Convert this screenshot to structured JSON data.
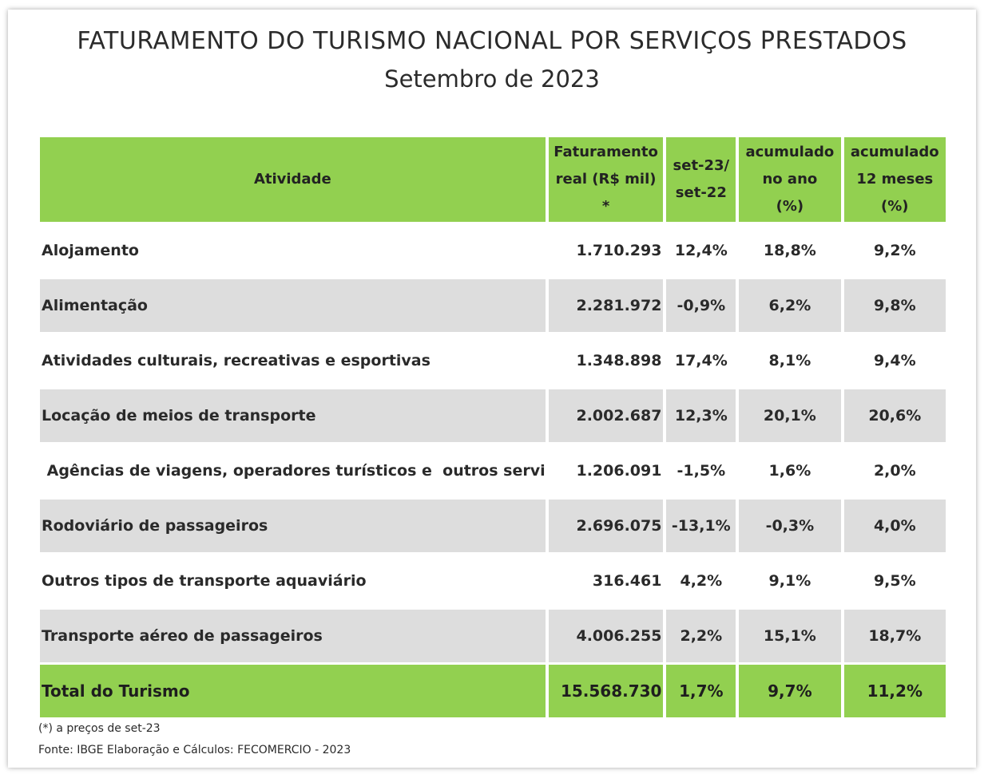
{
  "title": "FATURAMENTO DO TURISMO NACIONAL POR SERVIÇOS PRESTADOS",
  "subtitle": "Setembro de 2023",
  "table": {
    "headers": [
      [
        "Atividade"
      ],
      [
        "Faturamento",
        "real (R$ mil) *"
      ],
      [
        "set-23/",
        "set-22"
      ],
      [
        "acumulado",
        "no ano",
        "(%)"
      ],
      [
        "acumulado",
        "12 meses",
        "(%)"
      ]
    ],
    "rows": [
      {
        "atividade": "Alojamento",
        "faturamento": "1.710.293",
        "set": "12,4%",
        "ano": "18,8%",
        "meses12": "9,2%"
      },
      {
        "atividade": "Alimentação",
        "faturamento": "2.281.972",
        "set": "-0,9%",
        "ano": "6,2%",
        "meses12": "9,8%"
      },
      {
        "atividade": "Atividades culturais, recreativas e esportivas",
        "faturamento": "1.348.898",
        "set": "17,4%",
        "ano": "8,1%",
        "meses12": "9,4%"
      },
      {
        "atividade": "Locação de meios de transporte",
        "faturamento": "2.002.687",
        "set": "12,3%",
        "ano": "20,1%",
        "meses12": "20,6%"
      },
      {
        "atividade": " Agências de viagens, operadores turísticos e  outros servi",
        "faturamento": "1.206.091",
        "set": "-1,5%",
        "ano": "1,6%",
        "meses12": "2,0%"
      },
      {
        "atividade": "Rodoviário de passageiros",
        "faturamento": "2.696.075",
        "set": "-13,1%",
        "ano": "-0,3%",
        "meses12": "4,0%"
      },
      {
        "atividade": "Outros tipos de transporte aquaviário",
        "faturamento": "316.461",
        "set": "4,2%",
        "ano": "9,1%",
        "meses12": "9,5%"
      },
      {
        "atividade": "Transporte aéreo de passageiros",
        "faturamento": "4.006.255",
        "set": "2,2%",
        "ano": "15,1%",
        "meses12": "18,7%"
      }
    ],
    "total": {
      "atividade": "Total do Turismo",
      "faturamento": "15.568.730",
      "set": "1,7%",
      "ano": "9,7%",
      "meses12": "11,2%"
    }
  },
  "footnote": "(*) a preços de set-23",
  "source": "Fonte: IBGE Elaboração e Cálculos: FECOMERCIO - 2023",
  "colors": {
    "header_green": "#92d050",
    "row_gray": "#dddddd"
  }
}
